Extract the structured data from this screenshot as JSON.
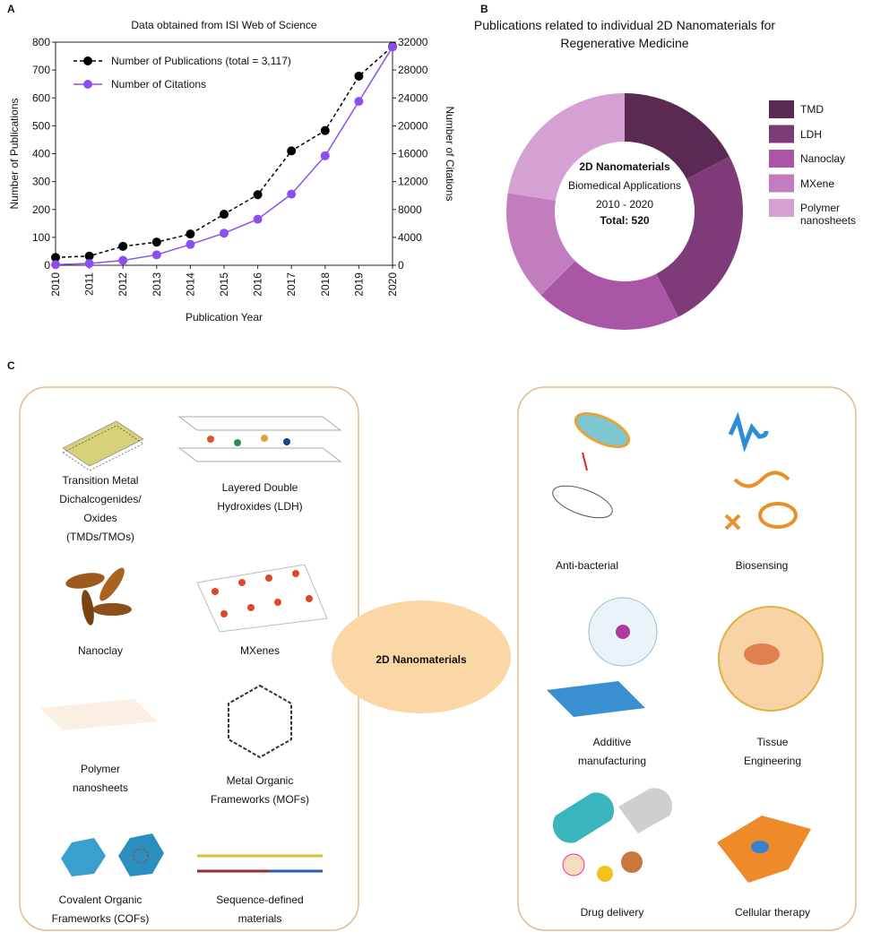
{
  "chart_data": [
    {
      "type": "line",
      "panel": "A",
      "title": "Data obtained from ISI Web of Science",
      "x_label": "Publication Year",
      "y_label": "Number of Publications",
      "y2_label": "Number of Citations",
      "x": [
        2010,
        2011,
        2012,
        2013,
        2014,
        2015,
        2016,
        2017,
        2018,
        2019,
        2020
      ],
      "xlim": [
        2010,
        2020
      ],
      "xticks": [
        2010,
        2011,
        2012,
        2013,
        2014,
        2015,
        2016,
        2017,
        2018,
        2019,
        2020
      ],
      "ylim": [
        0,
        800
      ],
      "yticks": [
        0,
        100,
        200,
        300,
        400,
        500,
        600,
        700,
        800
      ],
      "y2lim": [
        0,
        32000
      ],
      "y2ticks": [
        0,
        4000,
        8000,
        12000,
        16000,
        20000,
        24000,
        28000,
        32000
      ],
      "legend": "upper left",
      "series": [
        {
          "name": "Number of Publications (total = 3,117)",
          "color": "#000000",
          "dashed": true,
          "values": [
            28,
            33,
            68,
            83,
            112,
            183,
            253,
            410,
            483,
            678,
            785
          ]
        },
        {
          "name": "Number of Citations",
          "color": "#8b4ff0",
          "axis": "y2",
          "values": [
            100,
            250,
            700,
            1500,
            3000,
            4600,
            6600,
            10200,
            15700,
            23500,
            31300
          ]
        }
      ]
    },
    {
      "type": "pie",
      "panel": "B",
      "title": "Publications related to individual 2D Nanomaterials for Regenerative Medicine",
      "donut": true,
      "legend": "right",
      "center_text": [
        "2D Nanomaterials",
        "Biomedical Applications",
        "2010 - 2020",
        "Total: 520"
      ],
      "categories": [
        "TMD",
        "LDH",
        "Nanoclay",
        "MXene",
        "Polymer nanosheets"
      ],
      "values": [
        90,
        131,
        104,
        78,
        117
      ],
      "colors": [
        "#5a2a52",
        "#7e3b78",
        "#a956a6",
        "#c27dbf",
        "#d5a0d2"
      ]
    }
  ],
  "diagram": {
    "panel": "C",
    "center": "2D Nanomaterials",
    "materials": [
      {
        "label": [
          "Transition Metal",
          "Dichalcogenides/",
          "Oxides",
          "(TMDs/TMOs)"
        ]
      },
      {
        "label": [
          "Layered Double",
          "Hydroxides (LDH)"
        ]
      },
      {
        "label": [
          "Nanoclay"
        ]
      },
      {
        "label": [
          "MXenes"
        ]
      },
      {
        "label": [
          "Polymer",
          "nanosheets"
        ]
      },
      {
        "label": [
          "Metal Organic",
          "Frameworks (MOFs)"
        ]
      },
      {
        "label": [
          "Covalent Organic",
          "Frameworks (COFs)"
        ]
      },
      {
        "label": [
          "Sequence-defined",
          "materials"
        ]
      }
    ],
    "applications": [
      {
        "label": [
          "Anti-bacterial"
        ]
      },
      {
        "label": [
          "Biosensing"
        ]
      },
      {
        "label": [
          "Additive",
          "manufacturing"
        ]
      },
      {
        "label": [
          "Tissue",
          "Engineering"
        ]
      },
      {
        "label": [
          "Drug delivery"
        ]
      },
      {
        "label": [
          "Cellular therapy"
        ]
      }
    ]
  }
}
